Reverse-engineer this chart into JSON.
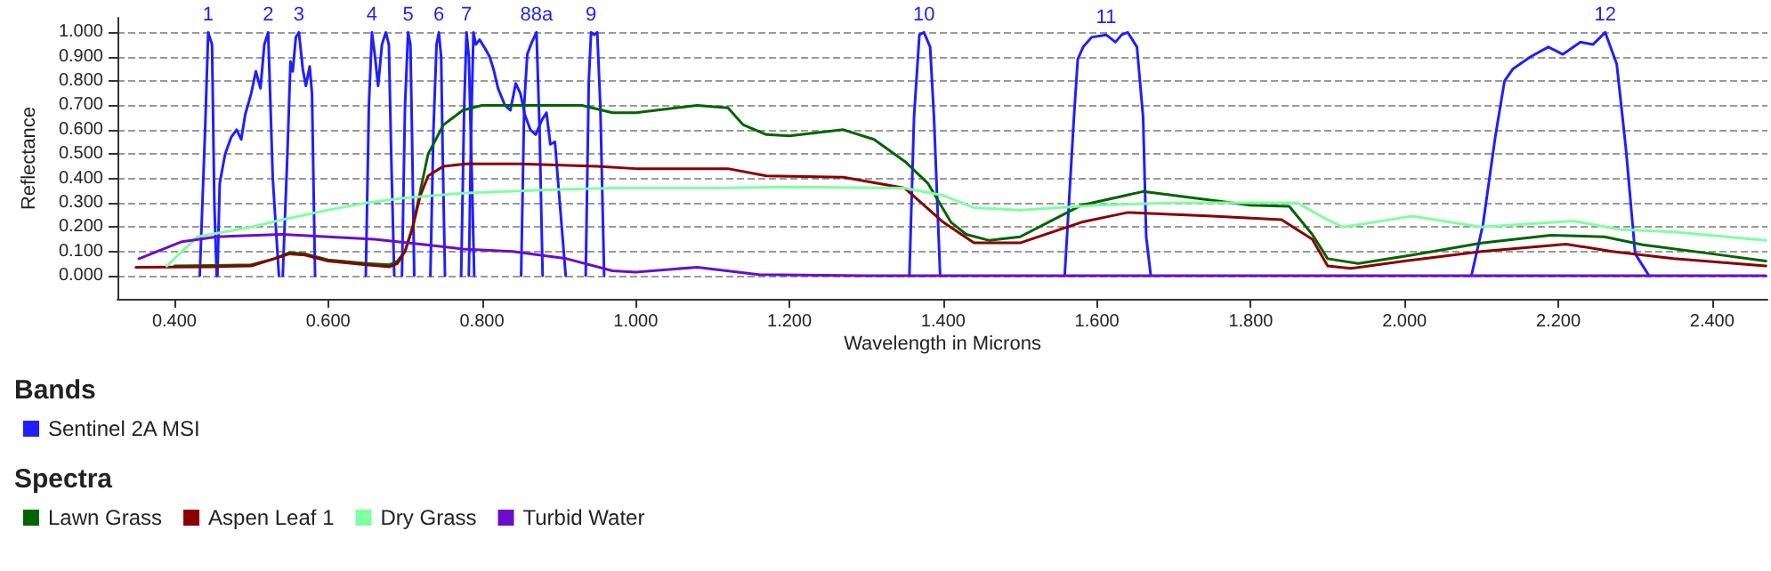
{
  "chart_data": {
    "type": "line",
    "xlabel": "Wavelength in Microns",
    "ylabel": "Reflectance",
    "xlim": [
      0.326,
      2.472
    ],
    "ylim": [
      -0.095,
      1.06
    ],
    "xticks": [
      {
        "value": 0.4,
        "label": "0.400"
      },
      {
        "value": 0.6,
        "label": "0.600"
      },
      {
        "value": 0.8,
        "label": "0.800"
      },
      {
        "value": 1.0,
        "label": "1.000"
      },
      {
        "value": 1.2,
        "label": "1.200"
      },
      {
        "value": 1.4,
        "label": "1.400"
      },
      {
        "value": 1.6,
        "label": "1.600"
      },
      {
        "value": 1.8,
        "label": "1.800"
      },
      {
        "value": 2.0,
        "label": "2.000"
      },
      {
        "value": 2.2,
        "label": "2.200"
      },
      {
        "value": 2.4,
        "label": "2.400"
      }
    ],
    "yticks": [
      {
        "value": 0,
        "label": "0.000"
      },
      {
        "value": 0.1,
        "label": "0.100"
      },
      {
        "value": 0.2,
        "label": "0.200"
      },
      {
        "value": 0.3,
        "label": "0.300"
      },
      {
        "value": 0.4,
        "label": "0.400"
      },
      {
        "value": 0.5,
        "label": "0.500"
      },
      {
        "value": 0.6,
        "label": "0.600"
      },
      {
        "value": 0.7,
        "label": "0.700"
      },
      {
        "value": 0.8,
        "label": "0.800"
      },
      {
        "value": 0.9,
        "label": "0.900"
      },
      {
        "value": 1.0,
        "label": "1.000"
      }
    ],
    "grid": "y",
    "legend": "bottom left",
    "marker": "none",
    "line_style": "solid",
    "series": [
      {
        "name": "Sentinel 2A MSI",
        "color": "#1f1fff",
        "x": [
          0.433,
          0.44,
          0.444,
          0.449,
          0.452,
          0.455
        ],
        "values": [
          0,
          0.6,
          1.0,
          0.95,
          0.3,
          0
        ]
      },
      {
        "color": "#1f1fff",
        "x": [
          0.456,
          0.459,
          0.466,
          0.474,
          0.481,
          0.487,
          0.492,
          0.5,
          0.506,
          0.512,
          0.517,
          0.522,
          0.528,
          0.536
        ],
        "values": [
          0,
          0.38,
          0.5,
          0.57,
          0.6,
          0.56,
          0.66,
          0.75,
          0.84,
          0.77,
          0.95,
          1.0,
          0.4,
          0
        ]
      },
      {
        "color": "#1f1fff",
        "x": [
          0.541,
          0.547,
          0.551,
          0.554,
          0.558,
          0.562,
          0.567,
          0.571,
          0.576,
          0.579,
          0.583
        ],
        "values": [
          0,
          0.5,
          0.88,
          0.84,
          0.98,
          1.0,
          0.85,
          0.78,
          0.86,
          0.75,
          0
        ]
      },
      {
        "color": "#1f1fff",
        "x": [
          0.649,
          0.653,
          0.657,
          0.661,
          0.665,
          0.67,
          0.675,
          0.679,
          0.682,
          0.686
        ],
        "values": [
          0,
          0.7,
          1.0,
          0.9,
          0.78,
          0.95,
          1.0,
          0.95,
          0.5,
          0
        ]
      },
      {
        "color": "#1f1fff",
        "x": [
          0.696,
          0.7,
          0.704,
          0.707,
          0.709,
          0.712
        ],
        "values": [
          0,
          0.7,
          1.0,
          0.95,
          0.6,
          0
        ]
      },
      {
        "color": "#1f1fff",
        "x": [
          0.733,
          0.737,
          0.741,
          0.744,
          0.747,
          0.749,
          0.752
        ],
        "values": [
          0,
          0.6,
          0.95,
          1.0,
          0.9,
          0.5,
          0
        ]
      },
      {
        "color": "#1f1fff",
        "x": [
          0.773,
          0.777,
          0.78,
          0.783,
          0.787,
          0.79
        ],
        "values": [
          0,
          0.7,
          1.0,
          0.9,
          0.4,
          0
        ]
      },
      {
        "color": "#1f1fff",
        "x": [
          0.783,
          0.786,
          0.789,
          0.792,
          0.797,
          0.803,
          0.81,
          0.815,
          0.821,
          0.83,
          0.837,
          0.844,
          0.85,
          0.856,
          0.863,
          0.87,
          0.878,
          0.884,
          0.889,
          0.895,
          0.9,
          0.909
        ],
        "values": [
          0,
          0.6,
          1.0,
          0.95,
          0.97,
          0.94,
          0.9,
          0.85,
          0.77,
          0.7,
          0.68,
          0.79,
          0.75,
          0.66,
          0.6,
          0.58,
          0.64,
          0.67,
          0.54,
          0.55,
          0.35,
          0
        ]
      },
      {
        "color": "#1f1fff",
        "x": [
          0.851,
          0.855,
          0.859,
          0.865,
          0.871,
          0.875,
          0.879
        ],
        "values": [
          0,
          0.7,
          0.91,
          0.96,
          1.0,
          0.6,
          0
        ]
      },
      {
        "color": "#1f1fff",
        "x": [
          0.935,
          0.939,
          0.942,
          0.946,
          0.95,
          0.954,
          0.959
        ],
        "values": [
          0,
          0.8,
          1.0,
          0.99,
          1.0,
          0.7,
          0
        ]
      },
      {
        "color": "#1f1fff",
        "x": [
          1.356,
          1.362,
          1.369,
          1.375,
          1.383,
          1.388,
          1.396
        ],
        "values": [
          0,
          0.65,
          0.99,
          1.0,
          0.94,
          0.65,
          0
        ]
      },
      {
        "color": "#1f1fff",
        "x": [
          1.558,
          1.57,
          1.575,
          1.582,
          1.593,
          1.612,
          1.624,
          1.632,
          1.64,
          1.652,
          1.66,
          1.664,
          1.67
        ],
        "values": [
          0,
          0.65,
          0.89,
          0.94,
          0.98,
          0.99,
          0.96,
          0.99,
          1.0,
          0.94,
          0.65,
          0.16,
          0
        ]
      },
      {
        "color": "#1f1fff",
        "x": [
          2.087,
          2.102,
          2.118,
          2.13,
          2.141,
          2.164,
          2.187,
          2.206,
          2.229,
          2.245,
          2.261,
          2.276,
          2.288,
          2.3,
          2.318
        ],
        "values": [
          0,
          0.21,
          0.57,
          0.8,
          0.85,
          0.9,
          0.94,
          0.91,
          0.96,
          0.95,
          1.0,
          0.87,
          0.52,
          0.09,
          0
        ]
      },
      {
        "name": "Lawn Grass",
        "color": "#006400",
        "x": [
          0.4,
          0.45,
          0.5,
          0.53,
          0.55,
          0.57,
          0.6,
          0.65,
          0.68,
          0.69,
          0.7,
          0.71,
          0.72,
          0.73,
          0.75,
          0.775,
          0.8,
          0.85,
          0.9,
          0.93,
          0.97,
          1.0,
          1.08,
          1.12,
          1.14,
          1.17,
          1.2,
          1.27,
          1.31,
          1.35,
          1.38,
          1.41,
          1.43,
          1.46,
          1.5,
          1.58,
          1.66,
          1.75,
          1.8,
          1.85,
          1.88,
          1.9,
          1.94,
          2.01,
          2.1,
          2.19,
          2.26,
          2.31,
          2.4,
          2.47
        ],
        "values": [
          0.04,
          0.042,
          0.045,
          0.07,
          0.095,
          0.09,
          0.065,
          0.05,
          0.045,
          0.06,
          0.1,
          0.2,
          0.35,
          0.5,
          0.62,
          0.68,
          0.7,
          0.7,
          0.7,
          0.7,
          0.67,
          0.67,
          0.7,
          0.69,
          0.62,
          0.58,
          0.575,
          0.6,
          0.56,
          0.47,
          0.38,
          0.22,
          0.17,
          0.145,
          0.16,
          0.29,
          0.346,
          0.31,
          0.29,
          0.285,
          0.17,
          0.07,
          0.05,
          0.085,
          0.134,
          0.166,
          0.16,
          0.127,
          0.09,
          0.06
        ]
      },
      {
        "name": "Aspen Leaf 1",
        "color": "#8b0000",
        "x": [
          0.35,
          0.45,
          0.5,
          0.53,
          0.55,
          0.57,
          0.6,
          0.65,
          0.68,
          0.69,
          0.7,
          0.71,
          0.72,
          0.73,
          0.75,
          0.78,
          0.85,
          0.95,
          1.0,
          1.12,
          1.17,
          1.27,
          1.35,
          1.4,
          1.44,
          1.5,
          1.58,
          1.64,
          1.75,
          1.84,
          1.88,
          1.9,
          1.93,
          2.0,
          2.1,
          2.21,
          2.27,
          2.35,
          2.47
        ],
        "values": [
          0.035,
          0.037,
          0.04,
          0.07,
          0.09,
          0.085,
          0.06,
          0.045,
          0.037,
          0.05,
          0.1,
          0.2,
          0.33,
          0.41,
          0.45,
          0.46,
          0.46,
          0.45,
          0.44,
          0.44,
          0.41,
          0.405,
          0.36,
          0.22,
          0.135,
          0.135,
          0.22,
          0.26,
          0.245,
          0.23,
          0.15,
          0.04,
          0.03,
          0.06,
          0.1,
          0.13,
          0.1,
          0.07,
          0.04
        ]
      },
      {
        "name": "Dry Grass",
        "color": "#80ffa0",
        "x": [
          0.39,
          0.43,
          0.5,
          0.54,
          0.6,
          0.65,
          0.7,
          0.78,
          0.9,
          0.97,
          1.1,
          1.2,
          1.35,
          1.4,
          1.44,
          1.5,
          1.6,
          1.7,
          1.8,
          1.86,
          1.9,
          1.92,
          2.01,
          2.1,
          2.22,
          2.28,
          2.35,
          2.47
        ],
        "values": [
          0.04,
          0.16,
          0.2,
          0.23,
          0.27,
          0.3,
          0.32,
          0.34,
          0.355,
          0.36,
          0.36,
          0.365,
          0.36,
          0.33,
          0.28,
          0.27,
          0.29,
          0.3,
          0.3,
          0.3,
          0.23,
          0.2,
          0.245,
          0.2,
          0.225,
          0.19,
          0.18,
          0.145
        ]
      },
      {
        "name": "Turbid Water",
        "color": "#6a0dcc",
        "x": [
          0.354,
          0.41,
          0.455,
          0.54,
          0.66,
          0.72,
          0.775,
          0.84,
          0.91,
          0.97,
          1.0,
          1.08,
          1.16,
          1.3,
          2.47
        ],
        "values": [
          0.07,
          0.14,
          0.16,
          0.17,
          0.15,
          0.13,
          0.11,
          0.1,
          0.07,
          0.02,
          0.015,
          0.035,
          0.005,
          0.0,
          0.0
        ]
      }
    ],
    "annotations": [
      "Bands",
      "Spectra",
      {
        "text": "1",
        "x": 0.444,
        "y": 1.0
      },
      {
        "text": "2",
        "x": 0.522,
        "y": 1.0
      },
      {
        "text": "3",
        "x": 0.562,
        "y": 1.0
      },
      {
        "text": "4",
        "x": 0.657,
        "y": 1.0
      },
      {
        "text": "5",
        "x": 0.704,
        "y": 1.0
      },
      {
        "text": "6",
        "x": 0.744,
        "y": 1.0
      },
      {
        "text": "7",
        "x": 0.78,
        "y": 1.0
      },
      {
        "text": "88a",
        "x": 0.871,
        "y": 1.0
      },
      {
        "text": "9",
        "x": 0.942,
        "y": 1.0
      },
      {
        "text": "10",
        "x": 1.375,
        "y": 1.0
      },
      {
        "text": "11",
        "x": 1.612,
        "y": 0.99
      },
      {
        "text": "12",
        "x": 2.261,
        "y": 1.0
      }
    ]
  }
}
